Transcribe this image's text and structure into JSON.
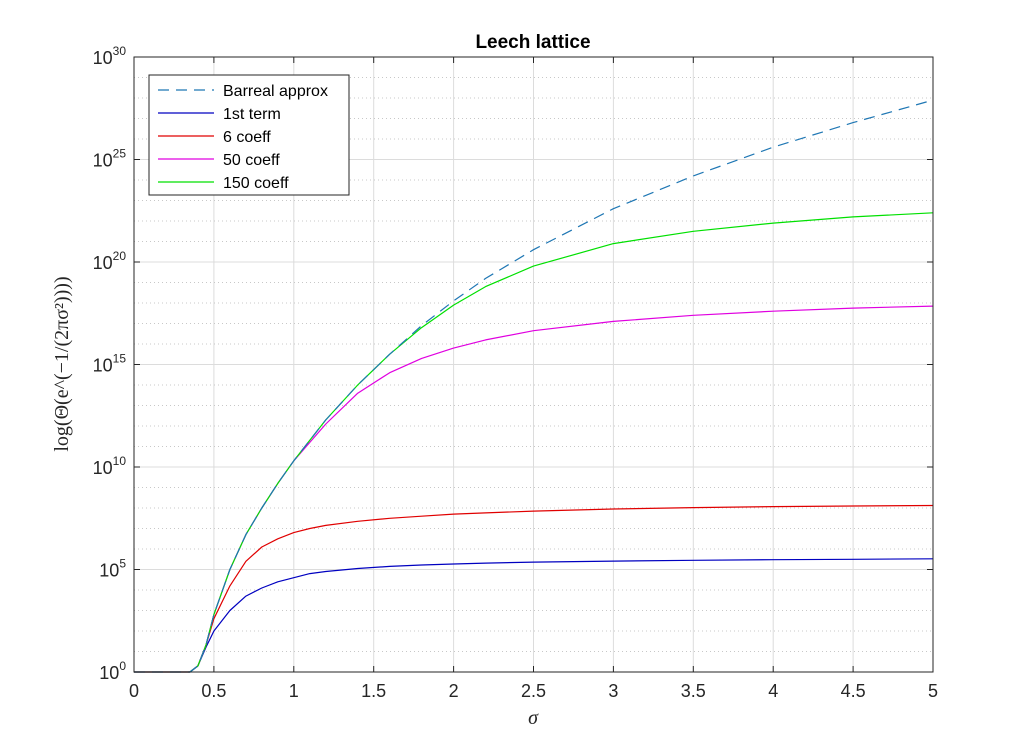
{
  "chart_data": {
    "type": "line",
    "title": "Leech lattice",
    "xlabel": "σ",
    "ylabel": "log(Θ(e^(−1/(2πσ²))))",
    "xlim": [
      0,
      5
    ],
    "ylim_log10": [
      0,
      30
    ],
    "y_scale": "log",
    "x_ticks": [
      "0",
      "0.5",
      "1",
      "1.5",
      "2",
      "2.5",
      "3",
      "3.5",
      "4",
      "4.5",
      "5"
    ],
    "y_ticks": [
      {
        "base": "10",
        "exp": "0"
      },
      {
        "base": "10",
        "exp": "5"
      },
      {
        "base": "10",
        "exp": "10"
      },
      {
        "base": "10",
        "exp": "15"
      },
      {
        "base": "10",
        "exp": "20"
      },
      {
        "base": "10",
        "exp": "25"
      },
      {
        "base": "10",
        "exp": "30"
      }
    ],
    "grid": true,
    "minor_grid": true,
    "legend_position": "top-left",
    "x": [
      0,
      0.35,
      0.4,
      0.45,
      0.5,
      0.6,
      0.7,
      0.8,
      0.9,
      1.0,
      1.1,
      1.2,
      1.4,
      1.6,
      1.8,
      2.0,
      2.2,
      2.5,
      3.0,
      3.5,
      4.0,
      4.5,
      5.0
    ],
    "series": [
      {
        "name": "Barreal approx",
        "color": "#1f77b4",
        "dash": true,
        "log10_values": [
          0,
          0,
          0.3,
          1.3,
          2.8,
          5.0,
          6.7,
          8.0,
          9.2,
          10.3,
          11.3,
          12.3,
          14.0,
          15.5,
          16.9,
          18.1,
          19.2,
          20.6,
          22.6,
          24.2,
          25.6,
          26.8,
          27.9
        ]
      },
      {
        "name": "1st term",
        "color": "#0000c0",
        "dash": false,
        "log10_values": [
          0,
          0,
          0.3,
          1.2,
          2.0,
          3.0,
          3.7,
          4.1,
          4.4,
          4.6,
          4.8,
          4.9,
          5.05,
          5.15,
          5.22,
          5.27,
          5.31,
          5.36,
          5.41,
          5.45,
          5.48,
          5.5,
          5.52
        ]
      },
      {
        "name": "6 coeff",
        "color": "#e00000",
        "dash": false,
        "log10_values": [
          0,
          0,
          0.3,
          1.3,
          2.6,
          4.2,
          5.4,
          6.1,
          6.5,
          6.8,
          7.0,
          7.15,
          7.35,
          7.5,
          7.6,
          7.7,
          7.76,
          7.85,
          7.95,
          8.02,
          8.07,
          8.1,
          8.12
        ]
      },
      {
        "name": "50 coeff",
        "color": "#e000e0",
        "dash": false,
        "log10_values": [
          0,
          0,
          0.3,
          1.3,
          2.8,
          5.0,
          6.7,
          8.0,
          9.2,
          10.3,
          11.2,
          12.1,
          13.6,
          14.6,
          15.3,
          15.8,
          16.2,
          16.65,
          17.1,
          17.4,
          17.6,
          17.75,
          17.85
        ]
      },
      {
        "name": "150 coeff",
        "color": "#00e000",
        "dash": false,
        "log10_values": [
          0,
          0,
          0.3,
          1.3,
          2.8,
          5.0,
          6.7,
          8.0,
          9.2,
          10.3,
          11.3,
          12.3,
          14.0,
          15.5,
          16.8,
          17.9,
          18.8,
          19.8,
          20.9,
          21.5,
          21.9,
          22.2,
          22.4
        ]
      }
    ]
  }
}
